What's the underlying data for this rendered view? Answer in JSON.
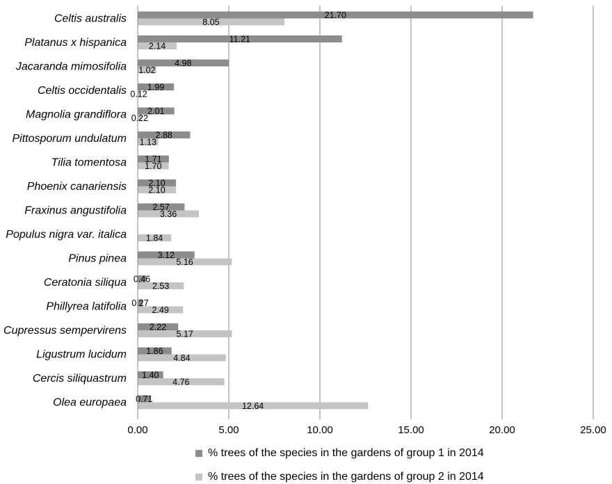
{
  "chart_data": {
    "type": "bar",
    "orientation": "horizontal",
    "categories": [
      "Celtis australis",
      "Platanus x hispanica",
      "Jacaranda mimosifolia",
      "Celtis occidentalis",
      "Magnolia grandiflora",
      "Pittosporum undulatum",
      "Tilia tomentosa",
      "Phoenix canariensis",
      "Fraxinus angustifolia",
      "Populus nigra var. italica",
      "Pinus pinea",
      "Ceratonia siliqua",
      "Phillyrea latifolia",
      "Cupressus sempervirens",
      "Ligustrum lucidum",
      "Cercis siliquastrum",
      "Olea europaea"
    ],
    "series": [
      {
        "name": "%  trees of the species in the gardens of group 1 in 2014",
        "color": "#8c8c8c",
        "values": [
          21.7,
          11.21,
          4.98,
          1.99,
          2.01,
          2.88,
          1.71,
          2.1,
          2.57,
          null,
          3.12,
          0.46,
          0.27,
          2.22,
          1.86,
          1.4,
          0.71
        ],
        "labels": [
          "21.70",
          "11.21",
          "4.98",
          "1.99",
          "2.01",
          "2.88",
          "1.71",
          "2.10",
          "2.57",
          "",
          "3.12",
          "0.46",
          "0.27",
          "2.22",
          "1.86",
          "1.40",
          "0.71"
        ]
      },
      {
        "name": "%  trees of the species in the gardens of group 2 in 2014",
        "color": "#c4c4c4",
        "values": [
          8.05,
          2.14,
          1.02,
          0.12,
          0.22,
          1.13,
          1.7,
          2.1,
          3.36,
          1.84,
          5.16,
          2.53,
          2.49,
          5.17,
          4.84,
          4.76,
          12.64
        ],
        "labels": [
          "8.05",
          "2.14",
          "1.02",
          "0.12",
          "0.22",
          "1.13",
          "1.70",
          "2.10",
          "3.36",
          "1.84",
          "5.16",
          "2.53",
          "2.49",
          "5.17",
          "4.84",
          "4.76",
          "12.64"
        ]
      }
    ],
    "xlim": [
      0,
      25
    ],
    "xticks": [
      0,
      5,
      10,
      15,
      20,
      25
    ],
    "xtick_labels": [
      "0.00",
      "5.00",
      "10.00",
      "15.00",
      "20.00",
      "25.00"
    ],
    "grid": "vertical",
    "legend_position": "bottom",
    "title": "",
    "xlabel": "",
    "ylabel": ""
  }
}
